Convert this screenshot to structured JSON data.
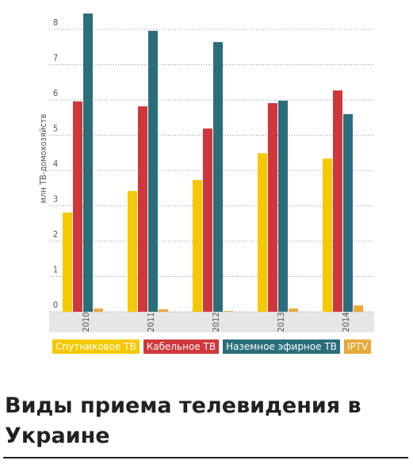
{
  "chart_data": {
    "type": "bar",
    "title": "Виды приема телевидения в Украине",
    "y_label": "млн ТВ-домохозяйств",
    "categories": [
      "2010",
      "2011",
      "2012",
      "2013",
      "2014"
    ],
    "series": [
      {
        "name": "Спутниковое ТВ",
        "color": "#f5c800",
        "values": [
          2.81,
          3.42,
          3.73,
          4.49,
          4.34
        ]
      },
      {
        "name": "Кабельное ТВ",
        "color": "#d0373a",
        "values": [
          5.96,
          5.82,
          5.19,
          5.91,
          6.27
        ]
      },
      {
        "name": "Наземное эфирное ТВ",
        "color": "#2a6e7b",
        "values": [
          8.45,
          7.96,
          7.64,
          5.98,
          5.6
        ]
      },
      {
        "name": "IPTV",
        "color": "#e8a93a",
        "values": [
          0.09,
          0.07,
          0.02,
          0.09,
          0.18
        ]
      }
    ],
    "ylim": [
      0,
      8.45
    ],
    "yticks": [
      0,
      1,
      2,
      3,
      4,
      5,
      6,
      7,
      8
    ],
    "grid": true
  }
}
